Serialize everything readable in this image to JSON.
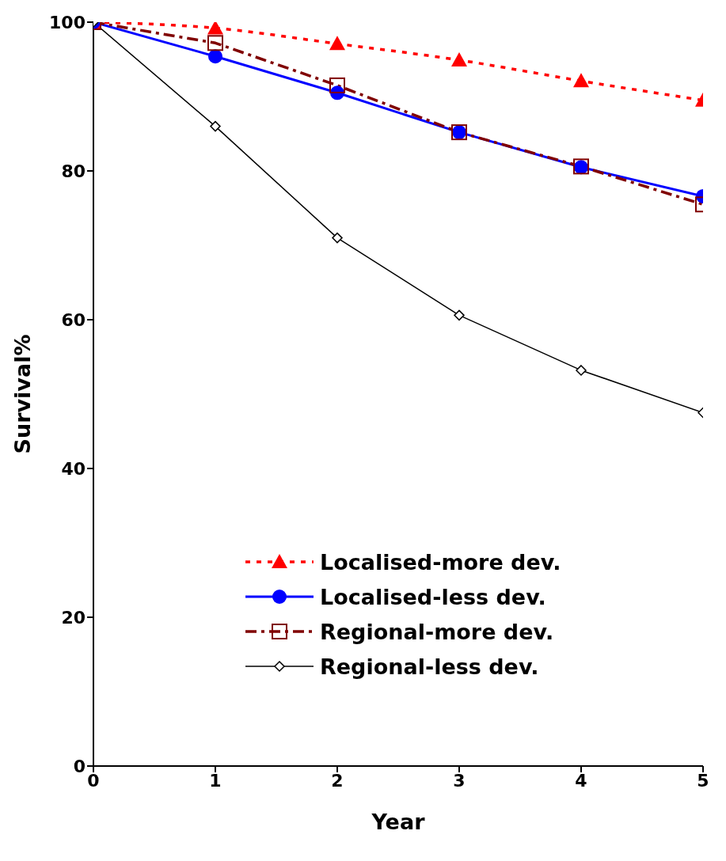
{
  "chart_data": {
    "type": "line",
    "xlabel": "Year",
    "ylabel": "Survival%",
    "x": [
      0,
      1,
      2,
      3,
      4,
      5
    ],
    "xlim": [
      0,
      5
    ],
    "xticks": [
      0,
      1,
      2,
      3,
      4,
      5
    ],
    "ylim": [
      0,
      100
    ],
    "yticks": [
      0,
      20,
      40,
      60,
      80,
      100
    ],
    "grid": false,
    "legend": "bottom",
    "series": [
      {
        "name": "Localised-more dev.",
        "color": "#ff0000",
        "values": [
          100,
          99.2,
          97.1,
          94.9,
          92.1,
          89.5
        ],
        "marker": "triangle",
        "line_style": "dotted"
      },
      {
        "name": "Localised-less dev.",
        "color": "#0000ff",
        "values": [
          100,
          95.4,
          90.5,
          85.2,
          80.5,
          76.6
        ],
        "marker": "circle",
        "line_style": "solid"
      },
      {
        "name": "Regional-more dev.",
        "color": "#800000",
        "values": [
          100,
          97.2,
          91.5,
          85.2,
          80.6,
          75.5
        ],
        "marker": "square",
        "line_style": "dashed"
      },
      {
        "name": "Regional-less dev.",
        "color": "#000000",
        "values": [
          100,
          86.0,
          71.0,
          60.6,
          53.2,
          47.5
        ],
        "marker": "diamond",
        "line_style": "solid"
      }
    ]
  }
}
